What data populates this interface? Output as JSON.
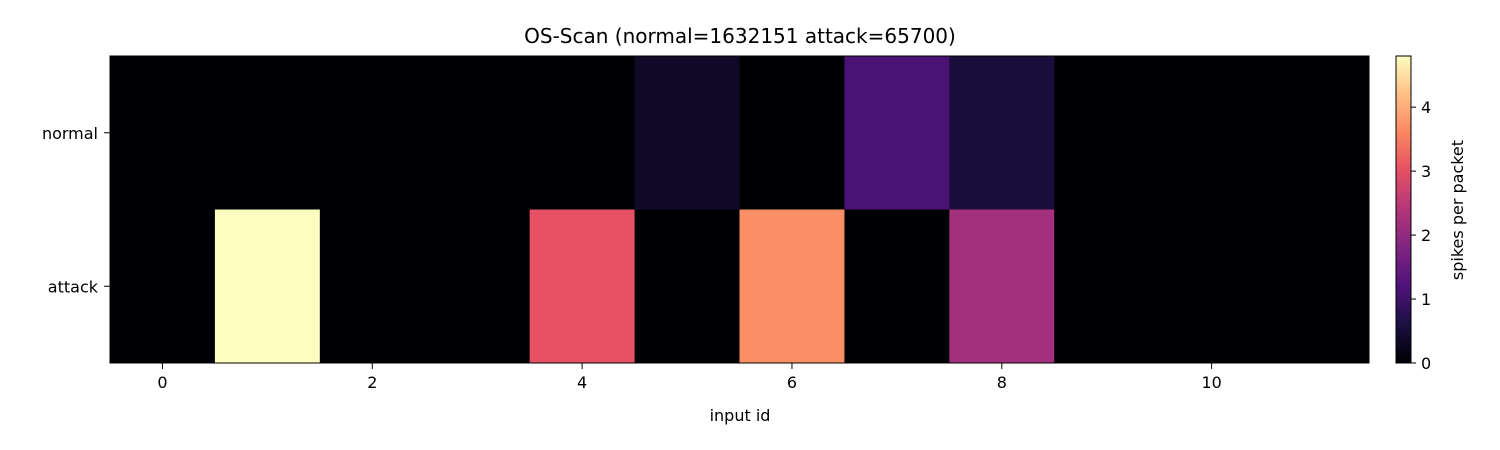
{
  "chart_data": {
    "type": "heatmap",
    "title": "OS-Scan   (normal=1632151  attack=65700)",
    "xlabel": "input id",
    "ylabel": "",
    "rows": [
      "normal",
      "attack"
    ],
    "columns": [
      0,
      1,
      2,
      3,
      4,
      5,
      6,
      7,
      8,
      9,
      10,
      11
    ],
    "values": [
      [
        0,
        0,
        0,
        0,
        0,
        0.35,
        0,
        1.15,
        0.55,
        0,
        0,
        0
      ],
      [
        0,
        4.8,
        0,
        0,
        3.05,
        0,
        3.7,
        0,
        2.2,
        0,
        0,
        0
      ]
    ],
    "x_ticks": [
      0,
      2,
      4,
      6,
      8,
      10
    ],
    "colorbar": {
      "label": "spikes per packet",
      "min": 0,
      "max": 4.8,
      "ticks": [
        0,
        1,
        2,
        3,
        4
      ],
      "colormap": "magma"
    }
  }
}
